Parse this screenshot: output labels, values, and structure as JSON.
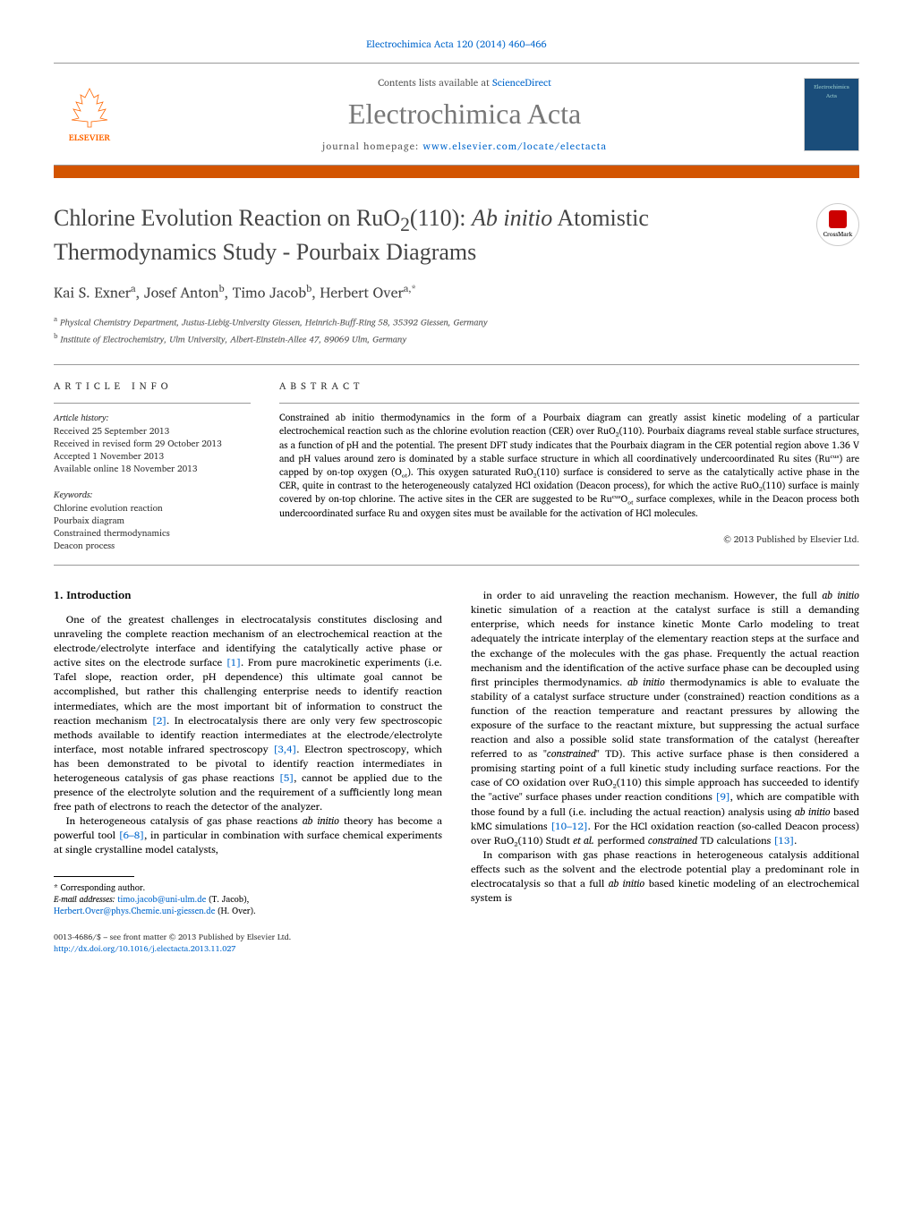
{
  "header": {
    "citation": "Electrochimica Acta 120 (2014) 460–466",
    "contents_prefix": "Contents lists available at ",
    "contents_link": "ScienceDirect",
    "journal_name": "Electrochimica Acta",
    "homepage_prefix": "journal homepage: ",
    "homepage_link": "www.elsevier.com/locate/electacta",
    "elsevier_label": "ELSEVIER",
    "cover_label": "Electrochimica Acta"
  },
  "title": {
    "pre": "Chlorine Evolution Reaction on RuO",
    "sub1": "2",
    "mid": "(110): ",
    "italic": "Ab initio",
    "post": " Atomistic Thermodynamics Study - Pourbaix Diagrams"
  },
  "crossmark_label": "CrossMark",
  "authors_html": "Kai S. Exner<sup>a</sup>, Josef Anton<sup>b</sup>, Timo Jacob<sup>b</sup>, Herbert Over<sup>a,*</sup>",
  "affiliations": [
    {
      "sup": "a",
      "text": "Physical Chemistry Department, Justus-Liebig-University Giessen, Heinrich-Buff-Ring 58, 35392 Giessen, Germany"
    },
    {
      "sup": "b",
      "text": "Institute of Electrochemistry, Ulm University, Albert-Einstein-Allee 47, 89069 Ulm, Germany"
    }
  ],
  "info": {
    "section_label": "article info",
    "history_label": "Article history:",
    "history": [
      "Received 25 September 2013",
      "Received in revised form 29 October 2013",
      "Accepted 1 November 2013",
      "Available online 18 November 2013"
    ],
    "keywords_label": "Keywords:",
    "keywords": [
      "Chlorine evolution reaction",
      "Pourbaix diagram",
      "Constrained thermodynamics",
      "Deacon process"
    ]
  },
  "abstract": {
    "label": "abstract",
    "text": "Constrained ab initio thermodynamics in the form of a Pourbaix diagram can greatly assist kinetic modeling of a particular electrochemical reaction such as the chlorine evolution reaction (CER) over RuO₂(110). Pourbaix diagrams reveal stable surface structures, as a function of pH and the potential. The present DFT study indicates that the Pourbaix diagram in the CER potential region above 1.36 V and pH values around zero is dominated by a stable surface structure in which all coordinatively undercoordinated Ru sites (Ruᶜᵘˢ) are capped by on-top oxygen (Oₒₜ). This oxygen saturated RuO₂(110) surface is considered to serve as the catalytically active phase in the CER, quite in contrast to the heterogeneously catalyzed HCl oxidation (Deacon process), for which the active RuO₂(110) surface is mainly covered by on-top chlorine. The active sites in the CER are suggested to be RuᶜᵘˢOₒₜ surface complexes, while in the Deacon process both undercoordinated surface Ru and oxygen sites must be available for the activation of HCl molecules.",
    "copyright": "© 2013 Published by Elsevier Ltd."
  },
  "section1": {
    "heading": "1. Introduction",
    "col1": [
      "One of the greatest challenges in electrocatalysis constitutes disclosing and unraveling the complete reaction mechanism of an electrochemical reaction at the electrode/electrolyte interface and identifying the catalytically active phase or active sites on the electrode surface [1]. From pure macrokinetic experiments (i.e. Tafel slope, reaction order, pH dependence) this ultimate goal cannot be accomplished, but rather this challenging enterprise needs to identify reaction intermediates, which are the most important bit of information to construct the reaction mechanism [2]. In electrocatalysis there are only very few spectroscopic methods available to identify reaction intermediates at the electrode/electrolyte interface, most notable infrared spectroscopy [3,4]. Electron spectroscopy, which has been demonstrated to be pivotal to identify reaction intermediates in heterogeneous catalysis of gas phase reactions [5], cannot be applied due to the presence of the electrolyte solution and the requirement of a sufficiently long mean free path of electrons to reach the detector of the analyzer.",
      "In heterogeneous catalysis of gas phase reactions ab initio theory has become a powerful tool [6–8], in particular in combination with surface chemical experiments at single crystalline model catalysts,"
    ],
    "col2": [
      "in order to aid unraveling the reaction mechanism. However, the full ab initio kinetic simulation of a reaction at the catalyst surface is still a demanding enterprise, which needs for instance kinetic Monte Carlo modeling to treat adequately the intricate interplay of the elementary reaction steps at the surface and the exchange of the molecules with the gas phase. Frequently the actual reaction mechanism and the identification of the active surface phase can be decoupled using first principles thermodynamics. Ab initio thermodynamics is able to evaluate the stability of a catalyst surface structure under (constrained) reaction conditions as a function of the reaction temperature and reactant pressures by allowing the exposure of the surface to the reactant mixture, but suppressing the actual surface reaction and also a possible solid state transformation of the catalyst (hereafter referred to as \"constrained\" TD). This active surface phase is then considered a promising starting point of a full kinetic study including surface reactions. For the case of CO oxidation over RuO₂(110) this simple approach has succeeded to identify the \"active\" surface phases under reaction conditions [9], which are compatible with those found by a full (i.e. including the actual reaction) analysis using ab initio based kMC simulations [10–12]. For the HCl oxidation reaction (so-called Deacon process) over RuO₂(110) Studt et al. performed constrained TD calculations [13].",
      "In comparison with gas phase reactions in heterogeneous catalysis additional effects such as the solvent and the electrode potential play a predominant role in electrocatalysis so that a full ab initio based kinetic modeling of an electrochemical system is"
    ]
  },
  "footnote": {
    "corr": "* Corresponding author.",
    "email_label": "E-mail addresses: ",
    "email1": "timo.jacob@uni-ulm.de",
    "email1_who": " (T. Jacob),",
    "email2": "Herbert.Over@phys.Chemie.uni-giessen.de",
    "email2_who": " (H. Over)."
  },
  "footer": {
    "issn": "0013-4686/$ – see front matter © 2013 Published by Elsevier Ltd.",
    "doi": "http://dx.doi.org/10.1016/j.electacta.2013.11.027"
  },
  "colors": {
    "link": "#0066cc",
    "orange_bar": "#d35400",
    "elsevier_orange": "#ff6600",
    "cover_bg": "#1a4d7a",
    "title_gray": "#777777"
  }
}
